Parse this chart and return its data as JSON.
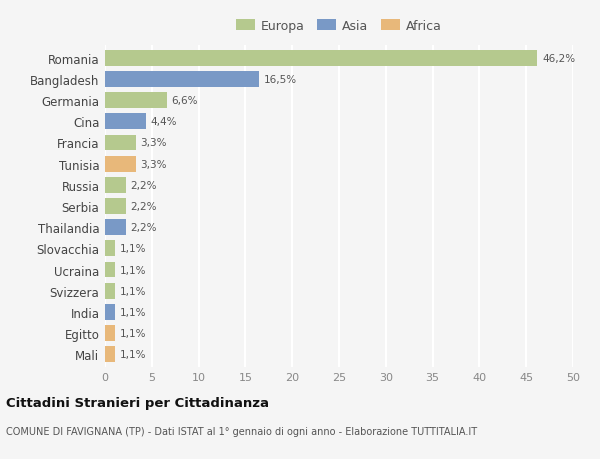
{
  "countries": [
    "Romania",
    "Bangladesh",
    "Germania",
    "Cina",
    "Francia",
    "Tunisia",
    "Russia",
    "Serbia",
    "Thailandia",
    "Slovacchia",
    "Ucraina",
    "Svizzera",
    "India",
    "Egitto",
    "Mali"
  ],
  "values": [
    46.2,
    16.5,
    6.6,
    4.4,
    3.3,
    3.3,
    2.2,
    2.2,
    2.2,
    1.1,
    1.1,
    1.1,
    1.1,
    1.1,
    1.1
  ],
  "labels": [
    "46,2%",
    "16,5%",
    "6,6%",
    "4,4%",
    "3,3%",
    "3,3%",
    "2,2%",
    "2,2%",
    "2,2%",
    "1,1%",
    "1,1%",
    "1,1%",
    "1,1%",
    "1,1%",
    "1,1%"
  ],
  "continents": [
    "Europa",
    "Asia",
    "Europa",
    "Asia",
    "Europa",
    "Africa",
    "Europa",
    "Europa",
    "Asia",
    "Europa",
    "Europa",
    "Europa",
    "Asia",
    "Africa",
    "Africa"
  ],
  "colors": {
    "Europa": "#b5c98e",
    "Asia": "#7999c6",
    "Africa": "#e8b87a"
  },
  "legend_labels": [
    "Europa",
    "Asia",
    "Africa"
  ],
  "xlim": [
    0,
    50
  ],
  "xticks": [
    0,
    5,
    10,
    15,
    20,
    25,
    30,
    35,
    40,
    45,
    50
  ],
  "title": "Cittadini Stranieri per Cittadinanza",
  "subtitle": "COMUNE DI FAVIGNANA (TP) - Dati ISTAT al 1° gennaio di ogni anno - Elaborazione TUTTITALIA.IT",
  "bg_color": "#f5f5f5",
  "grid_color": "#ffffff",
  "bar_height": 0.75
}
